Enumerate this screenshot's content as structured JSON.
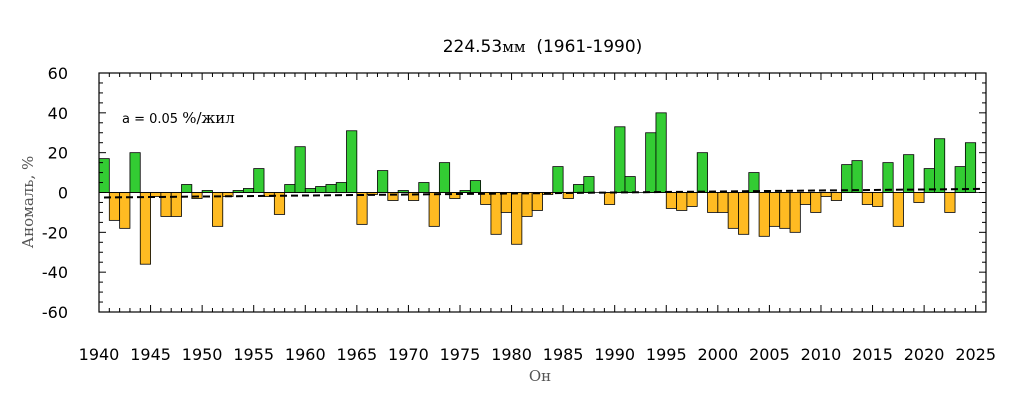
{
  "chart_data": {
    "type": "bar",
    "title_value": "224.53",
    "title_unit": "мм",
    "title_period": "(1961-1990)",
    "xlabel": "Он",
    "ylabel": "Аномаль, %",
    "annotation_prefix": "a = 0.05 ",
    "annotation_unit": "%/жил",
    "xlim": [
      1940,
      2026
    ],
    "ylim": [
      -60,
      60
    ],
    "x_ticks": [
      1940,
      1945,
      1950,
      1955,
      1960,
      1965,
      1970,
      1975,
      1980,
      1985,
      1990,
      1995,
      2000,
      2005,
      2010,
      2015,
      2020,
      2025
    ],
    "y_ticks": [
      -60,
      -40,
      -20,
      0,
      20,
      40,
      60
    ],
    "positive_color": "#33cc33",
    "negative_color": "#ffbb22",
    "trend": {
      "slope_percent_per_year": 0.05,
      "start": [
        1940,
        -2.5
      ],
      "end": [
        2025,
        1.8
      ],
      "style": "dashed"
    },
    "years": [
      1940,
      1941,
      1942,
      1943,
      1944,
      1945,
      1946,
      1947,
      1948,
      1949,
      1950,
      1951,
      1952,
      1953,
      1954,
      1955,
      1956,
      1957,
      1958,
      1959,
      1960,
      1961,
      1962,
      1963,
      1964,
      1965,
      1966,
      1967,
      1968,
      1969,
      1970,
      1971,
      1972,
      1973,
      1974,
      1975,
      1976,
      1977,
      1978,
      1979,
      1980,
      1981,
      1982,
      1983,
      1984,
      1985,
      1986,
      1987,
      1988,
      1989,
      1990,
      1991,
      1992,
      1993,
      1994,
      1995,
      1996,
      1997,
      1998,
      1999,
      2000,
      2001,
      2002,
      2003,
      2004,
      2005,
      2006,
      2007,
      2008,
      2009,
      2010,
      2011,
      2012,
      2013,
      2014,
      2015,
      2016,
      2017,
      2018,
      2019,
      2020,
      2021,
      2022,
      2023,
      2024,
      2025
    ],
    "values": [
      17,
      -14,
      -18,
      20,
      -36,
      -2,
      -12,
      -12,
      4,
      -3,
      1,
      -17,
      -2,
      1,
      2,
      12,
      -2,
      -11,
      4,
      23,
      2,
      3,
      4,
      5,
      31,
      -16,
      -1,
      11,
      -4,
      1,
      -4,
      5,
      -17,
      15,
      -3,
      1,
      6,
      -6,
      -21,
      -10,
      -26,
      -12,
      -9,
      -1,
      13,
      -3,
      4,
      8,
      0,
      -6,
      33,
      8,
      0,
      30,
      40,
      -8,
      -9,
      -7,
      20,
      -10,
      -10,
      -18,
      -21,
      10,
      -22,
      -17,
      -18,
      -20,
      -6,
      -10,
      -2,
      -4,
      14,
      16,
      -6,
      -7,
      15,
      -17,
      19,
      -5,
      12,
      27,
      -10,
      13,
      25,
      0
    ]
  }
}
